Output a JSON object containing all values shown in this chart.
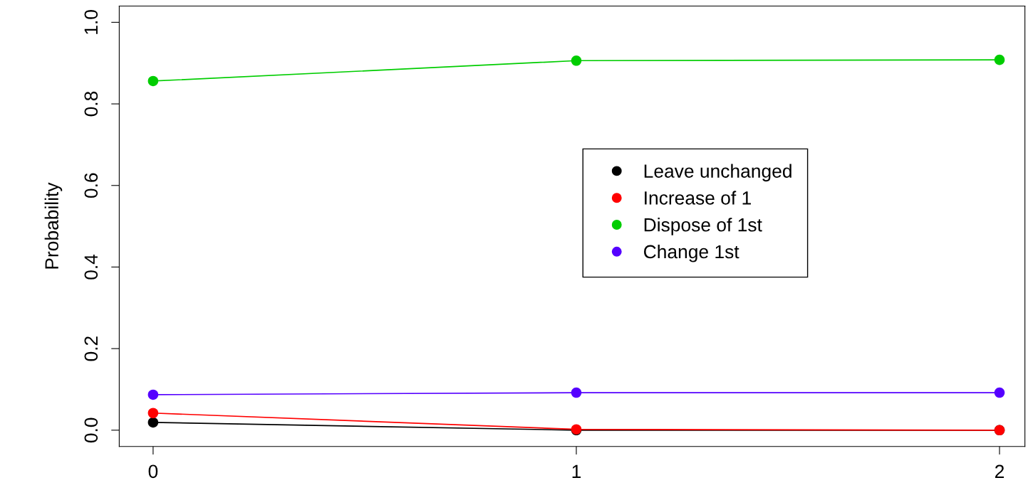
{
  "chart_data": {
    "type": "line",
    "ylabel": "Probability",
    "x": [
      0,
      1,
      2
    ],
    "xlim": [
      -0.08,
      2.06
    ],
    "xticks": [
      0,
      1,
      2
    ],
    "ylim": [
      -0.04,
      1.04
    ],
    "yticks": [
      {
        "value": 0,
        "label": "0.0"
      },
      {
        "value": 0.2,
        "label": "0.2"
      },
      {
        "value": 0.4,
        "label": "0.4"
      },
      {
        "value": 0.6,
        "label": "0.6"
      },
      {
        "value": 0.8,
        "label": "0.8"
      },
      {
        "value": 1,
        "label": "1.0"
      }
    ],
    "series": [
      {
        "name": "Leave unchanged",
        "color": "#000000",
        "values": [
          0.019,
          0.0,
          0.0
        ]
      },
      {
        "name": "Increase of 1",
        "color": "#ff0000",
        "values": [
          0.042,
          0.002,
          0.0
        ]
      },
      {
        "name": "Dispose of 1st",
        "color": "#00cd00",
        "values": [
          0.856,
          0.906,
          0.908
        ]
      },
      {
        "name": "Change 1st",
        "color": "#5500ff",
        "values": [
          0.087,
          0.092,
          0.092
        ]
      }
    ],
    "marker": "circle",
    "line_style": "solid",
    "legend": "center",
    "grid": false
  }
}
